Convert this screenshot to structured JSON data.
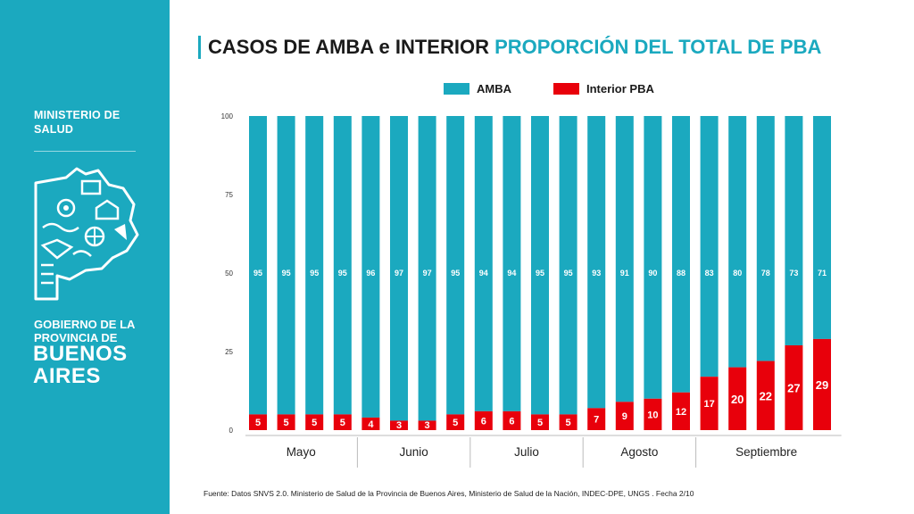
{
  "sidebar": {
    "ministry": "MINISTERIO DE SALUD",
    "gov_line1": "GOBIERNO DE LA",
    "gov_line2": "PROVINCIA DE",
    "gov_line3": "BUENOS",
    "gov_line4": "AIRES"
  },
  "header": {
    "title_main": "CASOS DE AMBA e INTERIOR",
    "title_accent": "PROPORCIÓN DEL TOTAL DE PBA"
  },
  "colors": {
    "amba": "#1ba9bf",
    "interior": "#e8000b",
    "brand": "#1ba9bf"
  },
  "chart_data": {
    "type": "bar",
    "stacked": true,
    "title": "",
    "ylim": [
      0,
      100
    ],
    "yticks": [
      0,
      25,
      50,
      75,
      100
    ],
    "legend_position": "top",
    "grid": false,
    "categories": [
      "",
      "",
      "",
      "",
      "",
      "",
      "",
      "",
      "",
      "",
      "",
      "",
      "",
      "",
      "",
      "",
      "",
      "",
      "",
      "",
      ""
    ],
    "series": [
      {
        "name": "Interior PBA",
        "values": [
          5,
          5,
          5,
          5,
          4,
          3,
          3,
          5,
          6,
          6,
          5,
          5,
          7,
          9,
          10,
          12,
          17,
          20,
          22,
          27,
          29
        ]
      },
      {
        "name": "AMBA",
        "values": [
          95,
          95,
          95,
          95,
          96,
          97,
          97,
          95,
          94,
          94,
          95,
          95,
          93,
          91,
          90,
          88,
          83,
          80,
          78,
          73,
          71
        ]
      }
    ],
    "month_groups": [
      {
        "label": "Mayo",
        "count": 4
      },
      {
        "label": "Junio",
        "count": 4
      },
      {
        "label": "Julio",
        "count": 4
      },
      {
        "label": "Agosto",
        "count": 4
      },
      {
        "label": "Septiembre",
        "count": 5
      }
    ]
  },
  "footer": {
    "source": "Fuente: Datos SNVS 2.0. Ministerio de Salud de la Provincia de Buenos Aires, Ministerio de Salud de la Nación, INDEC-DPE, UNGS . Fecha 2/10"
  }
}
